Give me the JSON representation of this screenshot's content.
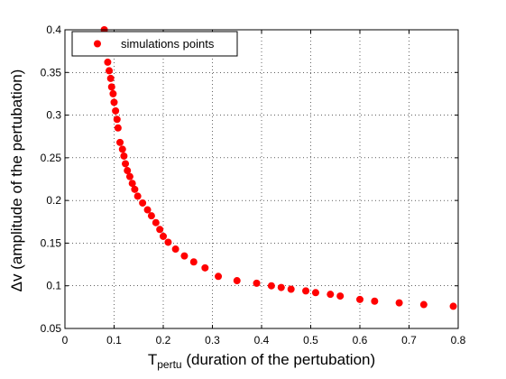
{
  "chart_data": {
    "type": "scatter",
    "title": "",
    "xlabel": {
      "main": "T",
      "sub": "pertu",
      "rest": " (duration of the pertubation)"
    },
    "ylabel": "Δv (amplitude of the pertubation)",
    "xlim": [
      0,
      0.8
    ],
    "ylim": [
      0.05,
      0.4
    ],
    "x_ticks": [
      "0",
      "0.1",
      "0.2",
      "0.3",
      "0.4",
      "0.5",
      "0.6",
      "0.7",
      "0.8"
    ],
    "y_ticks": [
      "0.05",
      "0.1",
      "0.15",
      "0.2",
      "0.25",
      "0.3",
      "0.35",
      "0.4"
    ],
    "grid": true,
    "legend_position": "top-left",
    "marker_color": "#ff0000",
    "series": [
      {
        "name": "simulations points",
        "points": [
          [
            0.08,
            0.4
          ],
          [
            0.085,
            0.38
          ],
          [
            0.087,
            0.362
          ],
          [
            0.09,
            0.352
          ],
          [
            0.093,
            0.343
          ],
          [
            0.095,
            0.333
          ],
          [
            0.098,
            0.325
          ],
          [
            0.1,
            0.315
          ],
          [
            0.103,
            0.305
          ],
          [
            0.106,
            0.295
          ],
          [
            0.108,
            0.285
          ],
          [
            0.112,
            0.268
          ],
          [
            0.117,
            0.26
          ],
          [
            0.12,
            0.252
          ],
          [
            0.123,
            0.243
          ],
          [
            0.127,
            0.235
          ],
          [
            0.132,
            0.228
          ],
          [
            0.137,
            0.22
          ],
          [
            0.142,
            0.213
          ],
          [
            0.148,
            0.205
          ],
          [
            0.158,
            0.197
          ],
          [
            0.168,
            0.189
          ],
          [
            0.176,
            0.182
          ],
          [
            0.185,
            0.174
          ],
          [
            0.193,
            0.166
          ],
          [
            0.2,
            0.158
          ],
          [
            0.21,
            0.151
          ],
          [
            0.225,
            0.143
          ],
          [
            0.243,
            0.135
          ],
          [
            0.262,
            0.128
          ],
          [
            0.285,
            0.121
          ],
          [
            0.312,
            0.111
          ],
          [
            0.35,
            0.106
          ],
          [
            0.39,
            0.103
          ],
          [
            0.42,
            0.1
          ],
          [
            0.44,
            0.098
          ],
          [
            0.46,
            0.096
          ],
          [
            0.49,
            0.094
          ],
          [
            0.51,
            0.092
          ],
          [
            0.54,
            0.09
          ],
          [
            0.56,
            0.088
          ],
          [
            0.6,
            0.084
          ],
          [
            0.63,
            0.082
          ],
          [
            0.68,
            0.08
          ],
          [
            0.73,
            0.078
          ],
          [
            0.79,
            0.076
          ]
        ]
      }
    ]
  }
}
